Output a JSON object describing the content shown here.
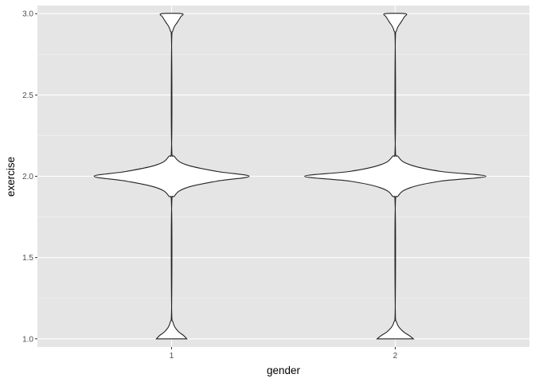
{
  "chart_data": {
    "type": "violin",
    "xlabel": "gender",
    "ylabel": "exercise",
    "categories": [
      "1",
      "2"
    ],
    "y_ticks": [
      "1.0",
      "1.5",
      "2.0",
      "2.5",
      "3.0"
    ],
    "y_tick_values": [
      1.0,
      1.5,
      2.0,
      2.5,
      3.0
    ],
    "ylim": [
      0.95,
      3.05
    ],
    "grid": true,
    "groups": [
      {
        "category": "1",
        "density_profile": [
          {
            "y": 1.0,
            "w": 0.15
          },
          {
            "y": 1.02,
            "w": 0.12
          },
          {
            "y": 1.05,
            "w": 0.06
          },
          {
            "y": 1.1,
            "w": 0.015
          },
          {
            "y": 1.2,
            "w": 0.0
          },
          {
            "y": 1.8,
            "w": 0.0
          },
          {
            "y": 1.88,
            "w": 0.03
          },
          {
            "y": 1.93,
            "w": 0.15
          },
          {
            "y": 1.97,
            "w": 0.45
          },
          {
            "y": 2.0,
            "w": 0.77
          },
          {
            "y": 2.03,
            "w": 0.45
          },
          {
            "y": 2.07,
            "w": 0.15
          },
          {
            "y": 2.12,
            "w": 0.03
          },
          {
            "y": 2.2,
            "w": 0.0
          },
          {
            "y": 2.8,
            "w": 0.0
          },
          {
            "y": 2.9,
            "w": 0.015
          },
          {
            "y": 2.95,
            "w": 0.06
          },
          {
            "y": 2.98,
            "w": 0.09
          },
          {
            "y": 3.0,
            "w": 0.1
          }
        ]
      },
      {
        "category": "2",
        "density_profile": [
          {
            "y": 1.0,
            "w": 0.18
          },
          {
            "y": 1.02,
            "w": 0.14
          },
          {
            "y": 1.05,
            "w": 0.07
          },
          {
            "y": 1.1,
            "w": 0.015
          },
          {
            "y": 1.2,
            "w": 0.0
          },
          {
            "y": 1.8,
            "w": 0.0
          },
          {
            "y": 1.88,
            "w": 0.03
          },
          {
            "y": 1.93,
            "w": 0.15
          },
          {
            "y": 1.97,
            "w": 0.45
          },
          {
            "y": 2.0,
            "w": 0.9
          },
          {
            "y": 2.03,
            "w": 0.45
          },
          {
            "y": 2.07,
            "w": 0.15
          },
          {
            "y": 2.12,
            "w": 0.03
          },
          {
            "y": 2.2,
            "w": 0.0
          },
          {
            "y": 2.8,
            "w": 0.0
          },
          {
            "y": 2.9,
            "w": 0.015
          },
          {
            "y": 2.95,
            "w": 0.06
          },
          {
            "y": 2.98,
            "w": 0.09
          },
          {
            "y": 3.0,
            "w": 0.1
          }
        ]
      }
    ]
  }
}
